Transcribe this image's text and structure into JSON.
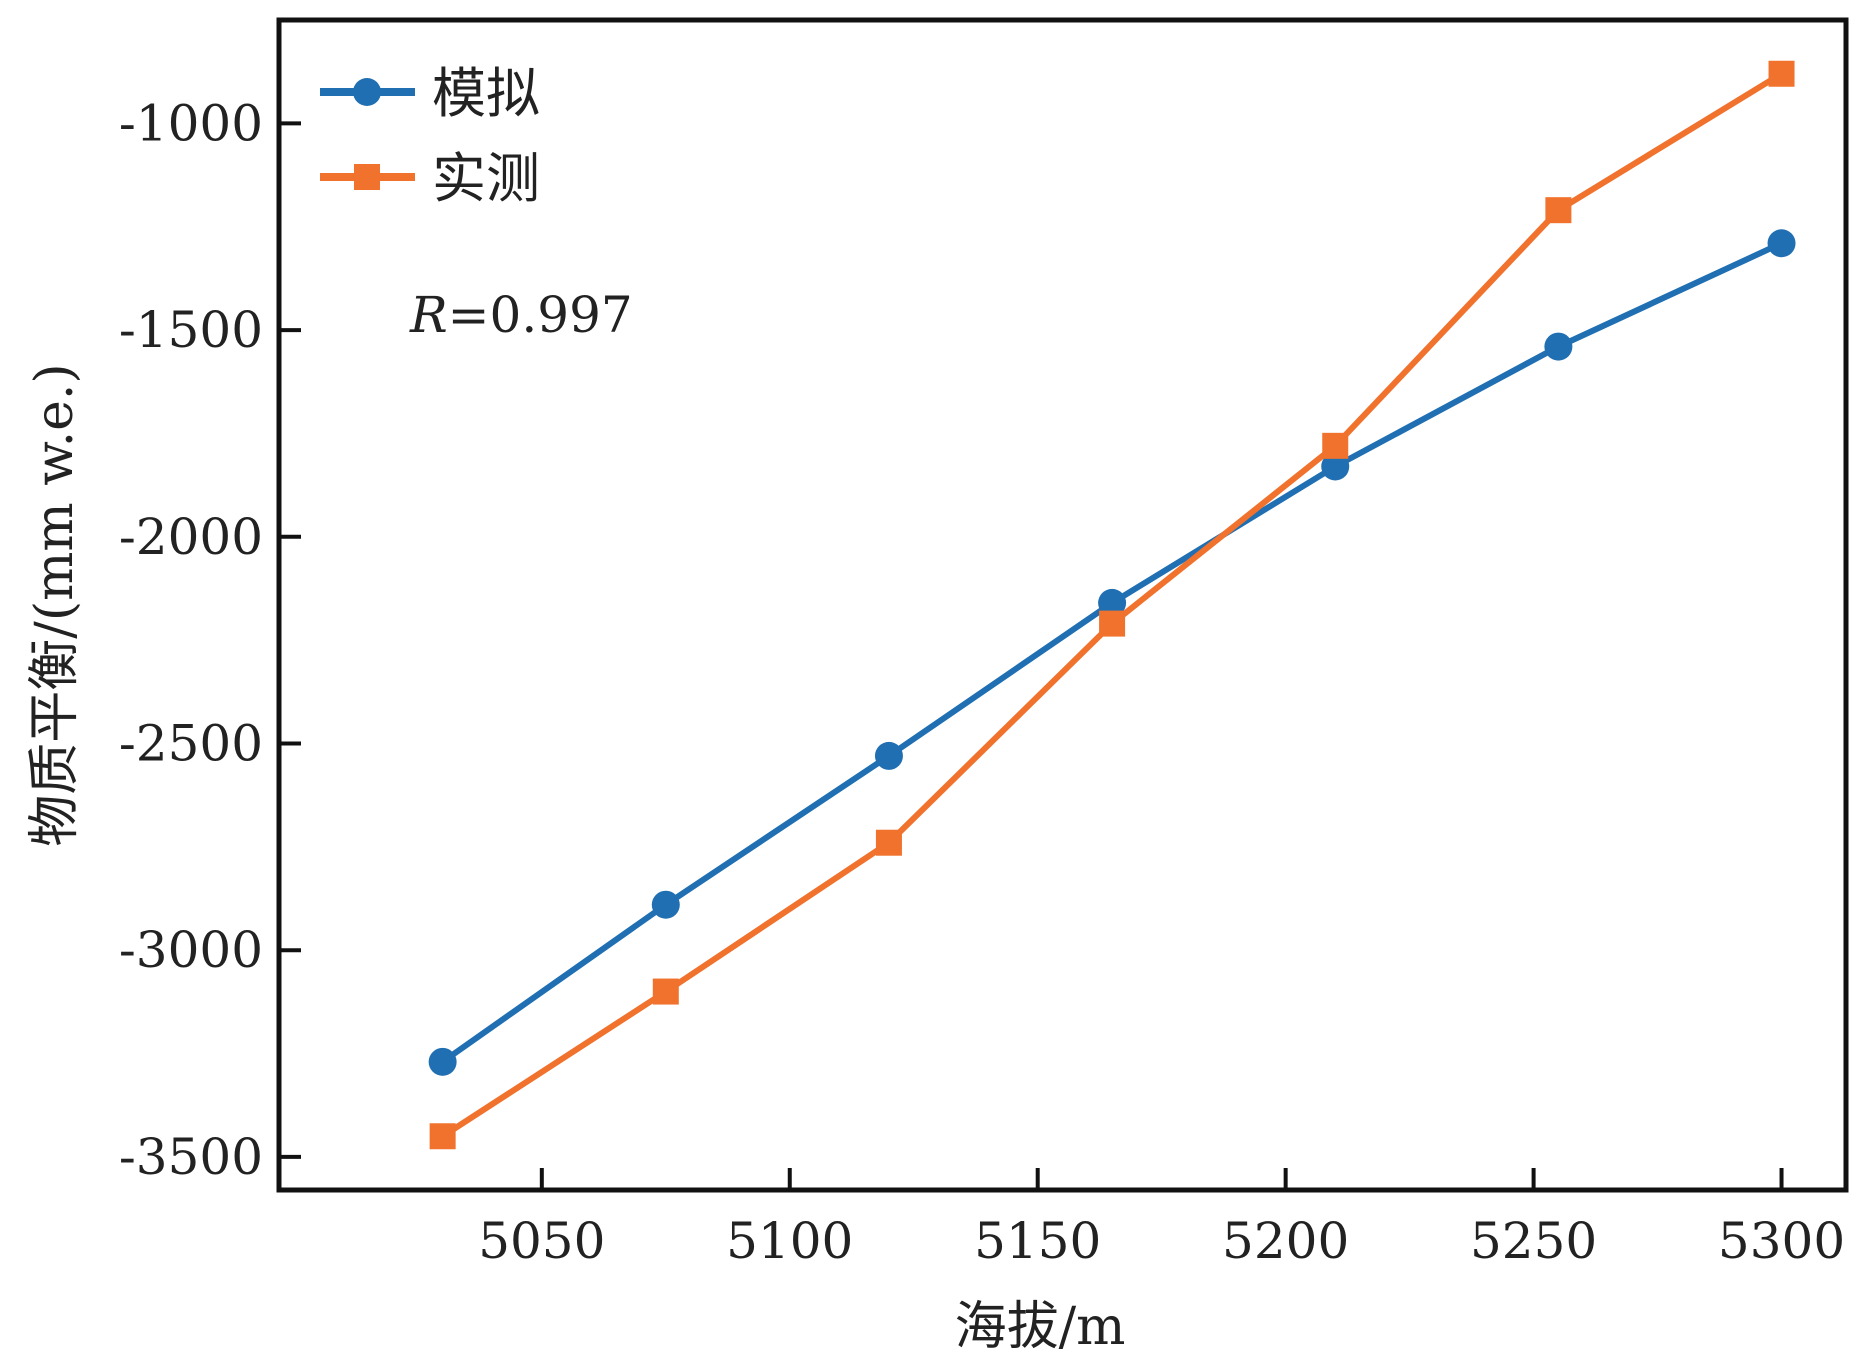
{
  "chart_data": {
    "type": "line",
    "title": "",
    "xlabel": "海拔/m",
    "ylabel": "物质平衡/(mm w.e.)",
    "x": [
      5030,
      5075,
      5120,
      5165,
      5210,
      5255,
      5300
    ],
    "series": [
      {
        "name": "模拟",
        "values": [
          -3270,
          -2890,
          -2530,
          -2160,
          -1830,
          -1540,
          -1290
        ],
        "color": "#1f6fb2",
        "marker": "circle"
      },
      {
        "name": "实测",
        "values": [
          -3450,
          -3100,
          -2740,
          -2210,
          -1780,
          -1210,
          -880
        ],
        "color": "#f0722d",
        "marker": "square"
      }
    ],
    "xlim": [
      4997,
      5313
    ],
    "ylim": [
      -3580,
      -750
    ],
    "xticks": [
      5050,
      5100,
      5150,
      5200,
      5250,
      5300
    ],
    "yticks": [
      -1000,
      -1500,
      -2000,
      -2500,
      -3000,
      -3500
    ],
    "xtick_labels": [
      "5050",
      "5100",
      "5150",
      "5200",
      "5250",
      "5300"
    ],
    "ytick_labels": [
      "-1000",
      "-1500",
      "-2000",
      "-2500",
      "-3000",
      "-3500"
    ],
    "annotation": {
      "italic": "R",
      "rest": "=0.997"
    },
    "legend": "top-left",
    "grid": false
  }
}
